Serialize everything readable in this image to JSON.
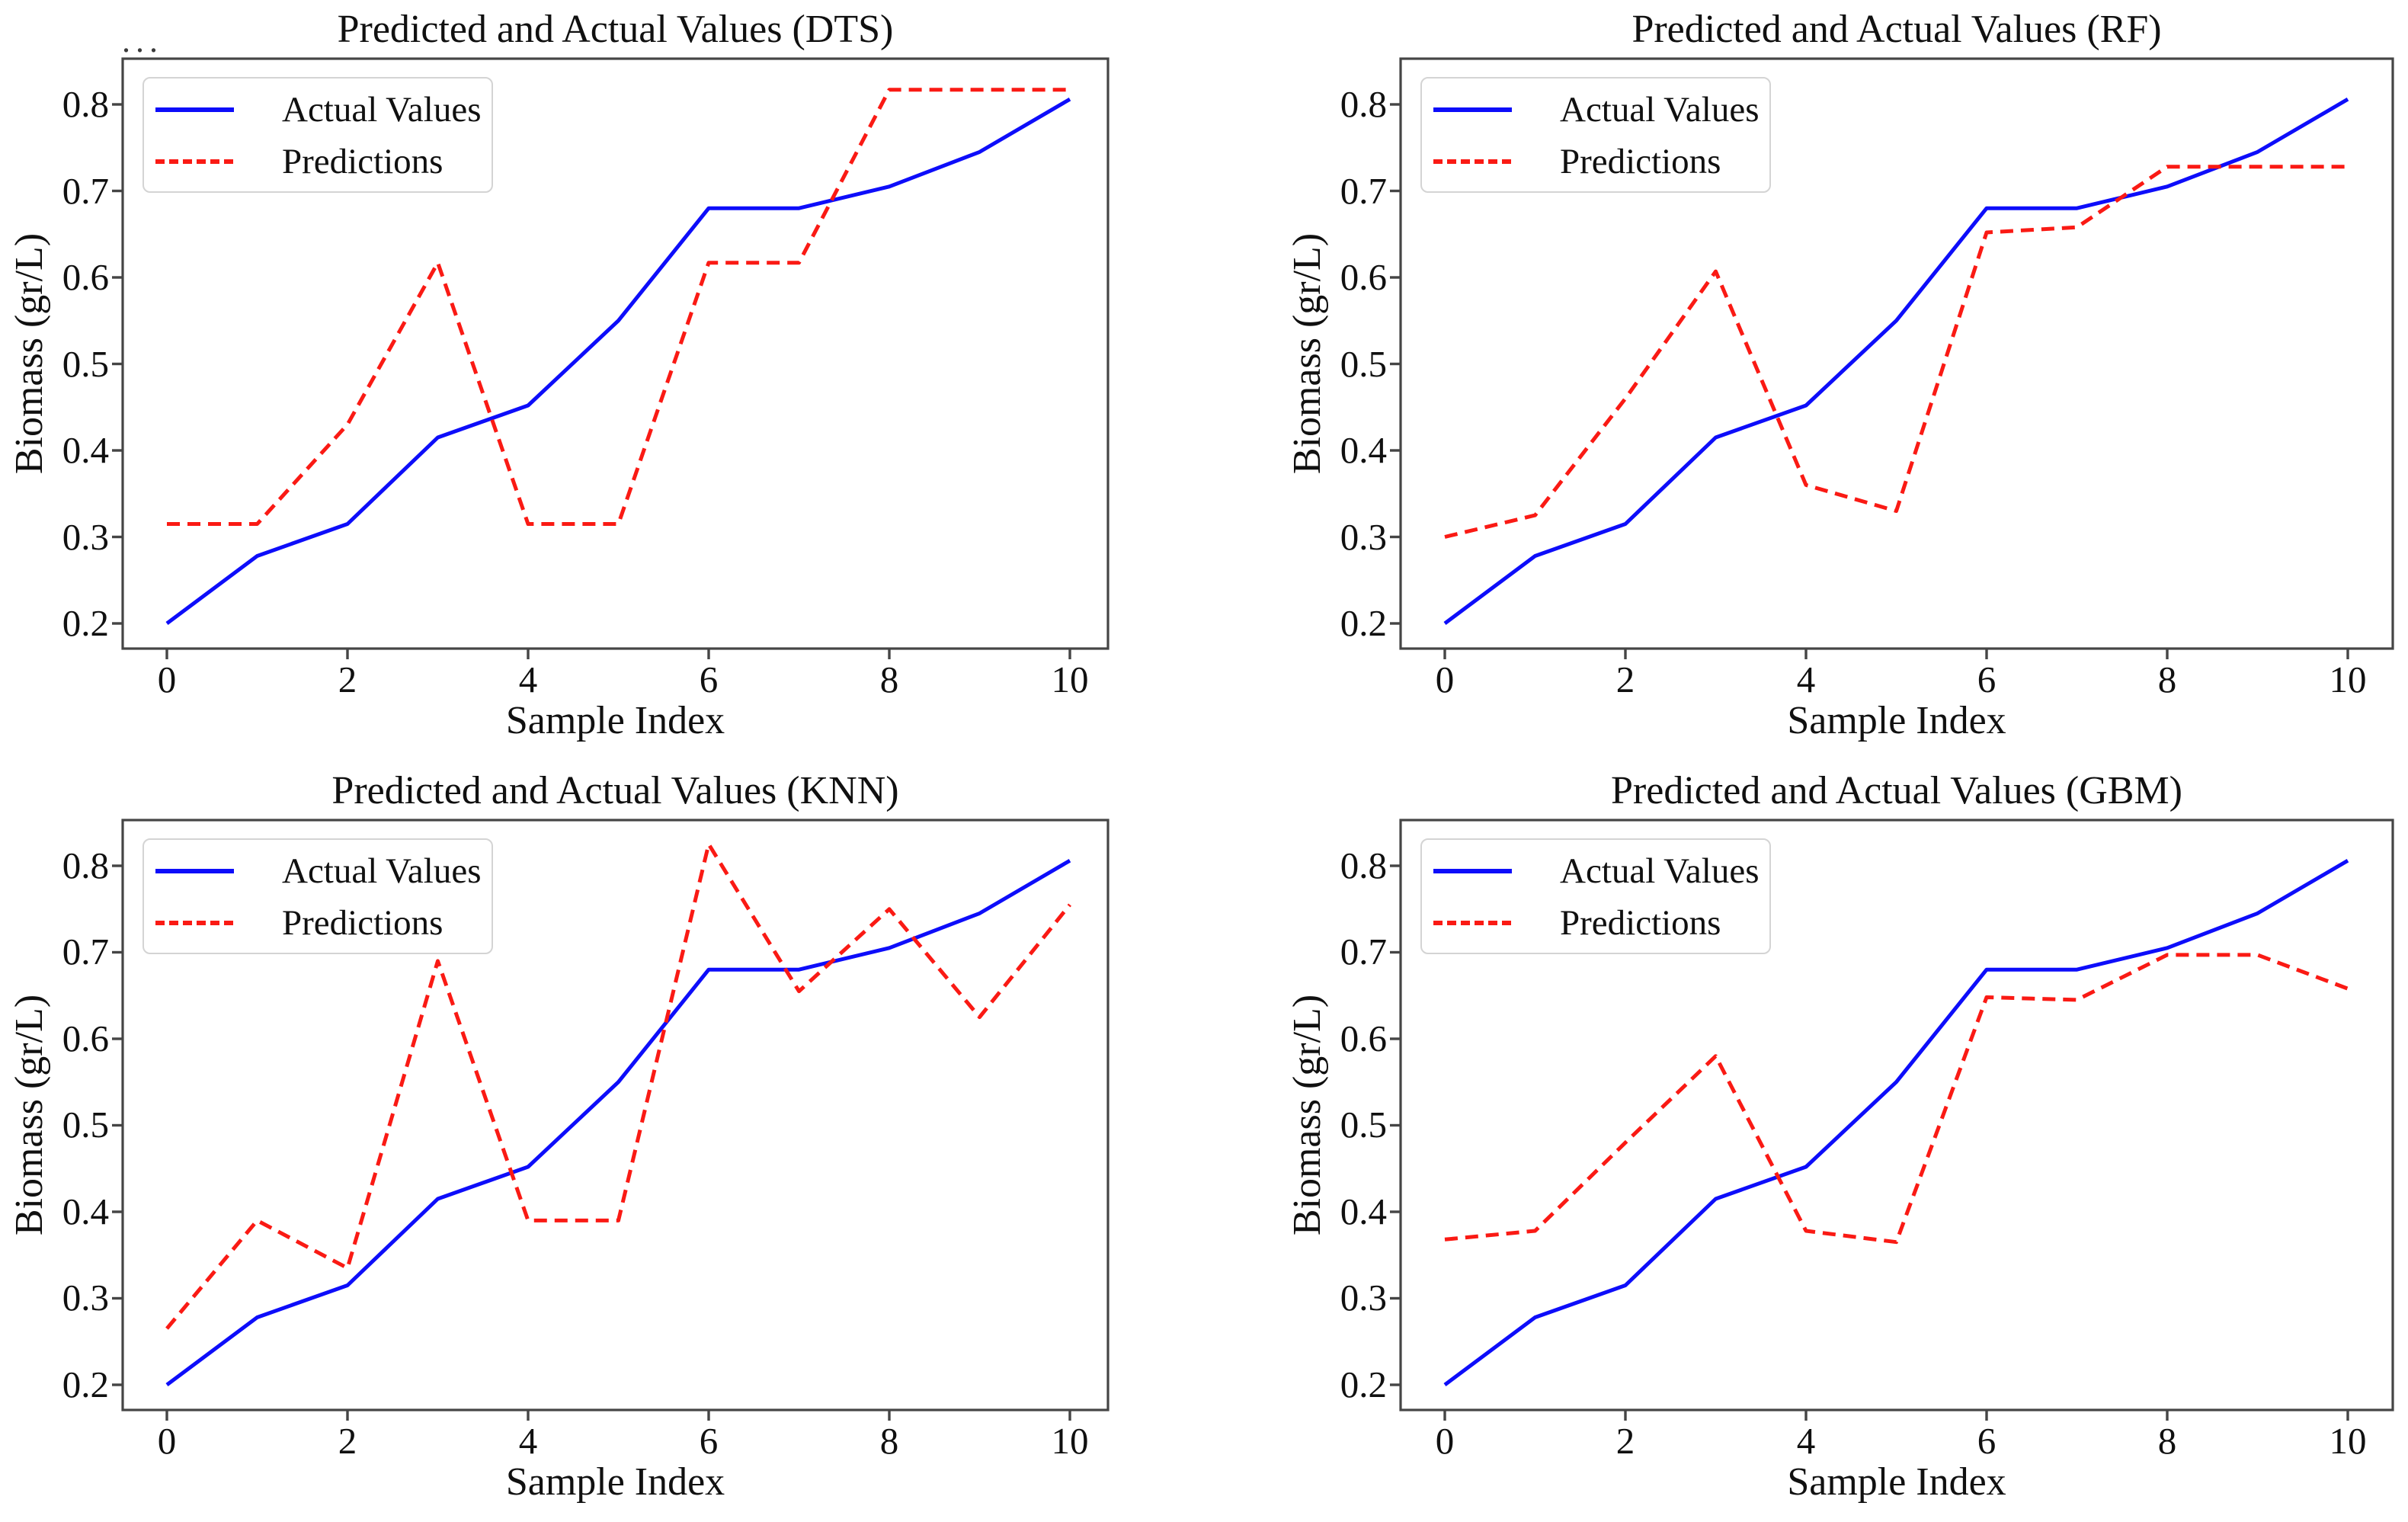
{
  "figure": {
    "artifact_text": "...",
    "background": "#ffffff",
    "frame_color": "#454545",
    "tick_color": "#454545",
    "text_color": "#101010",
    "legend_border_color": "#d4d4d4"
  },
  "chart_data": [
    {
      "type": "line",
      "title": "Predicted and Actual Values (DTS)",
      "xlabel": "Sample Index",
      "ylabel": "Biomass (gr/L)",
      "x": [
        0,
        1,
        2,
        3,
        4,
        5,
        6,
        7,
        8,
        9,
        10
      ],
      "xticks": [
        0,
        2,
        4,
        6,
        8,
        10
      ],
      "yticks": [
        0.2,
        0.3,
        0.4,
        0.5,
        0.6,
        0.7,
        0.8
      ],
      "xlim": [
        -0.49,
        10.49
      ],
      "ylim": [
        0.171,
        0.853
      ],
      "grid": false,
      "legend_position": "upper-left",
      "series": [
        {
          "name": "Actual Values",
          "color": "#0d0dfa",
          "style": "solid",
          "values": [
            0.2,
            0.278,
            0.315,
            0.415,
            0.452,
            0.55,
            0.68,
            0.68,
            0.705,
            0.745,
            0.806
          ]
        },
        {
          "name": "Predictions",
          "color": "#fa1a14",
          "style": "dashed",
          "values": [
            0.315,
            0.315,
            0.43,
            0.617,
            0.315,
            0.315,
            0.617,
            0.617,
            0.817,
            0.817,
            0.817
          ]
        }
      ]
    },
    {
      "type": "line",
      "title": "Predicted and Actual Values (RF)",
      "xlabel": "Sample Index",
      "ylabel": "Biomass (gr/L)",
      "x": [
        0,
        1,
        2,
        3,
        4,
        5,
        6,
        7,
        8,
        9,
        10
      ],
      "xticks": [
        0,
        2,
        4,
        6,
        8,
        10
      ],
      "yticks": [
        0.2,
        0.3,
        0.4,
        0.5,
        0.6,
        0.7,
        0.8
      ],
      "xlim": [
        -0.49,
        10.49
      ],
      "ylim": [
        0.171,
        0.853
      ],
      "grid": false,
      "legend_position": "upper-left",
      "series": [
        {
          "name": "Actual Values",
          "color": "#0d0dfa",
          "style": "solid",
          "values": [
            0.2,
            0.278,
            0.315,
            0.415,
            0.452,
            0.55,
            0.68,
            0.68,
            0.705,
            0.745,
            0.806
          ]
        },
        {
          "name": "Predictions",
          "color": "#fa1a14",
          "style": "dashed",
          "values": [
            0.3,
            0.325,
            0.46,
            0.607,
            0.36,
            0.33,
            0.652,
            0.658,
            0.728,
            0.728,
            0.728
          ]
        }
      ]
    },
    {
      "type": "line",
      "title": "Predicted and Actual Values (KNN)",
      "xlabel": "Sample Index",
      "ylabel": "Biomass (gr/L)",
      "x": [
        0,
        1,
        2,
        3,
        4,
        5,
        6,
        7,
        8,
        9,
        10
      ],
      "xticks": [
        0,
        2,
        4,
        6,
        8,
        10
      ],
      "yticks": [
        0.2,
        0.3,
        0.4,
        0.5,
        0.6,
        0.7,
        0.8
      ],
      "xlim": [
        -0.49,
        10.49
      ],
      "ylim": [
        0.171,
        0.853
      ],
      "grid": false,
      "legend_position": "upper-left",
      "series": [
        {
          "name": "Actual Values",
          "color": "#0d0dfa",
          "style": "solid",
          "values": [
            0.2,
            0.278,
            0.315,
            0.415,
            0.452,
            0.55,
            0.68,
            0.68,
            0.705,
            0.745,
            0.806
          ]
        },
        {
          "name": "Predictions",
          "color": "#fa1a14",
          "style": "dashed",
          "values": [
            0.265,
            0.39,
            0.335,
            0.69,
            0.39,
            0.39,
            0.825,
            0.655,
            0.75,
            0.625,
            0.755
          ]
        }
      ]
    },
    {
      "type": "line",
      "title": "Predicted and Actual Values (GBM)",
      "xlabel": "Sample Index",
      "ylabel": "Biomass (gr/L)",
      "x": [
        0,
        1,
        2,
        3,
        4,
        5,
        6,
        7,
        8,
        9,
        10
      ],
      "xticks": [
        0,
        2,
        4,
        6,
        8,
        10
      ],
      "yticks": [
        0.2,
        0.3,
        0.4,
        0.5,
        0.6,
        0.7,
        0.8
      ],
      "xlim": [
        -0.49,
        10.49
      ],
      "ylim": [
        0.171,
        0.853
      ],
      "grid": false,
      "legend_position": "upper-left",
      "series": [
        {
          "name": "Actual Values",
          "color": "#0d0dfa",
          "style": "solid",
          "values": [
            0.2,
            0.278,
            0.315,
            0.415,
            0.452,
            0.55,
            0.68,
            0.68,
            0.705,
            0.745,
            0.806
          ]
        },
        {
          "name": "Predictions",
          "color": "#fa1a14",
          "style": "dashed",
          "values": [
            0.368,
            0.378,
            0.48,
            0.58,
            0.378,
            0.365,
            0.648,
            0.645,
            0.697,
            0.697,
            0.658
          ]
        }
      ]
    }
  ]
}
